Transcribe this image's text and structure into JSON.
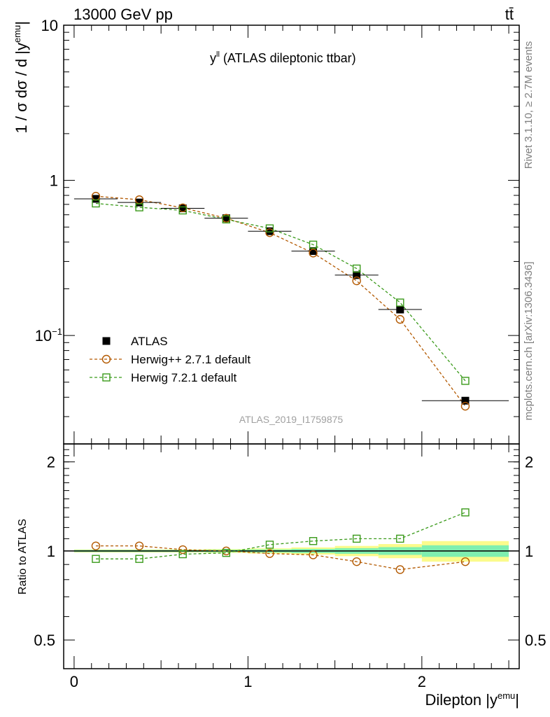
{
  "header": {
    "left": "13000 GeV pp",
    "right": "tt̄"
  },
  "side_labels": {
    "rivet": "Rivet 3.1.10, ≥ 2.7M events",
    "mcplots": "mcplots.cern.ch [arXiv:1306.3436]"
  },
  "chart_data": [
    {
      "type": "scatter",
      "panel": "main",
      "title": "y",
      "title_sup": "ll",
      "title_rest": " (ATLAS dileptonic ttbar)",
      "watermark": "ATLAS_2019_I1759875",
      "ylabel": "1 / σ  dσ / d |y",
      "ylabel_sup": "emu",
      "ylabel_end": "|",
      "yscale": "log",
      "ylim": [
        0.02,
        10
      ],
      "xlim": [
        -0.06,
        2.56
      ],
      "ytick_labels": [
        {
          "value": 10,
          "label": "10"
        },
        {
          "value": 1,
          "label": "1"
        },
        {
          "value": 0.1,
          "label": "10",
          "sup": "−1"
        }
      ],
      "legend": {
        "position": "bottom-left"
      },
      "x": [
        0.125,
        0.375,
        0.625,
        0.875,
        1.125,
        1.375,
        1.625,
        1.875,
        2.25
      ],
      "xerr": [
        0.125,
        0.125,
        0.125,
        0.125,
        0.125,
        0.125,
        0.125,
        0.125,
        0.25
      ],
      "series": [
        {
          "name": "ATLAS",
          "style": "data",
          "color": "#000000",
          "values": [
            0.76,
            0.72,
            0.66,
            0.57,
            0.47,
            0.35,
            0.245,
            0.147,
            0.038
          ]
        },
        {
          "name": "Herwig++ 2.7.1 default",
          "style": "circle",
          "color": "#b35900",
          "values": [
            0.79,
            0.75,
            0.665,
            0.57,
            0.46,
            0.34,
            0.225,
            0.127,
            0.035
          ]
        },
        {
          "name": "Herwig 7.2.1 default",
          "style": "square",
          "color": "#3a9a1a",
          "values": [
            0.71,
            0.67,
            0.64,
            0.56,
            0.49,
            0.385,
            0.27,
            0.163,
            0.051
          ]
        }
      ]
    },
    {
      "type": "scatter",
      "panel": "ratio",
      "ylabel": "Ratio to ATLAS",
      "xlabel": "Dilepton |y",
      "xlabel_sup": "emu",
      "xlabel_end": "|",
      "ylim": [
        0.4,
        2.3
      ],
      "yscale": "log",
      "ytick_labels": [
        {
          "value": 0.5,
          "label": "0.5"
        },
        {
          "value": 1,
          "label": "1"
        },
        {
          "value": 2,
          "label": "2"
        }
      ],
      "xtick_labels": [
        {
          "value": 0,
          "label": "0"
        },
        {
          "value": 1,
          "label": "1"
        },
        {
          "value": 2,
          "label": "2"
        }
      ],
      "x": [
        0.125,
        0.375,
        0.625,
        0.875,
        1.125,
        1.375,
        1.625,
        1.875,
        2.25
      ],
      "xerr": [
        0.125,
        0.125,
        0.125,
        0.125,
        0.125,
        0.125,
        0.125,
        0.125,
        0.25
      ],
      "band_stat": [
        0.008,
        0.008,
        0.008,
        0.01,
        0.012,
        0.016,
        0.022,
        0.03,
        0.045
      ],
      "band_total": [
        0.012,
        0.012,
        0.012,
        0.015,
        0.02,
        0.028,
        0.04,
        0.055,
        0.08
      ],
      "band_colors": {
        "stat": "#7fefb0",
        "total": "#fbfb8c"
      },
      "series": [
        {
          "name": "Herwig++ 2.7.1 default",
          "style": "circle",
          "color": "#b35900",
          "values": [
            1.04,
            1.04,
            1.01,
            1.0,
            0.98,
            0.97,
            0.92,
            0.865,
            0.92
          ]
        },
        {
          "name": "Herwig 7.2.1 default",
          "style": "square",
          "color": "#3a9a1a",
          "values": [
            0.94,
            0.94,
            0.975,
            0.985,
            1.05,
            1.08,
            1.1,
            1.1,
            1.35
          ]
        }
      ]
    }
  ]
}
